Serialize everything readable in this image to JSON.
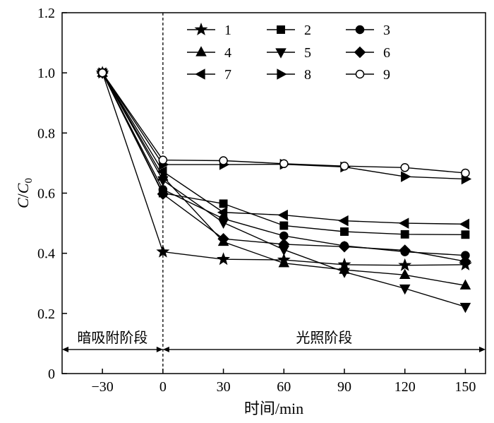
{
  "chart_data": {
    "type": "line",
    "xlabel": "时间/min",
    "ylabel_main": "C",
    "ylabel_slash": "/",
    "ylabel_denom": "C",
    "ylabel_sub": "0",
    "xlim": [
      -50,
      160
    ],
    "ylim": [
      0,
      1.2
    ],
    "x_ticks": [
      -30,
      0,
      30,
      60,
      90,
      120,
      150
    ],
    "x_tick_labels": [
      "−30",
      "0",
      "30",
      "60",
      "90",
      "120",
      "150"
    ],
    "y_ticks": [
      0,
      0.2,
      0.4,
      0.6,
      0.8,
      1.0,
      1.2
    ],
    "y_tick_labels": [
      "0",
      "0.2",
      "0.4",
      "0.6",
      "0.8",
      "1.0",
      "1.2"
    ],
    "grid": false,
    "legend_position": "top-right",
    "x": [
      -30,
      0,
      30,
      60,
      90,
      120,
      150
    ],
    "divider_x": 0,
    "phases": [
      {
        "label": "暗吸附阶段",
        "from": -50,
        "to": 0
      },
      {
        "label": "光照阶段",
        "from": 0,
        "to": 160
      }
    ],
    "series": [
      {
        "name": "1",
        "marker": "star",
        "filled": true,
        "values": [
          1.0,
          0.405,
          0.38,
          0.378,
          0.362,
          0.36,
          0.362
        ]
      },
      {
        "name": "2",
        "marker": "square",
        "filled": true,
        "values": [
          1.0,
          0.6,
          0.565,
          0.492,
          0.472,
          0.463,
          0.462
        ]
      },
      {
        "name": "3",
        "marker": "circle",
        "filled": true,
        "values": [
          1.0,
          0.612,
          0.515,
          0.458,
          0.425,
          0.405,
          0.393
        ]
      },
      {
        "name": "4",
        "marker": "triangle-up",
        "filled": true,
        "values": [
          1.0,
          0.655,
          0.438,
          0.367,
          0.345,
          0.328,
          0.293
        ]
      },
      {
        "name": "5",
        "marker": "triangle-down",
        "filled": true,
        "values": [
          1.0,
          0.643,
          0.502,
          0.412,
          0.338,
          0.283,
          0.222
        ]
      },
      {
        "name": "6",
        "marker": "diamond",
        "filled": true,
        "values": [
          1.0,
          0.597,
          0.448,
          0.43,
          0.422,
          0.41,
          0.373
        ]
      },
      {
        "name": "7",
        "marker": "triangle-left",
        "filled": true,
        "values": [
          1.0,
          0.672,
          0.536,
          0.527,
          0.508,
          0.5,
          0.497
        ]
      },
      {
        "name": "8",
        "marker": "triangle-right",
        "filled": true,
        "values": [
          1.0,
          0.695,
          0.695,
          0.696,
          0.687,
          0.655,
          0.647
        ]
      },
      {
        "name": "9",
        "marker": "circle",
        "filled": false,
        "values": [
          1.0,
          0.71,
          0.708,
          0.698,
          0.69,
          0.685,
          0.667
        ]
      }
    ]
  }
}
